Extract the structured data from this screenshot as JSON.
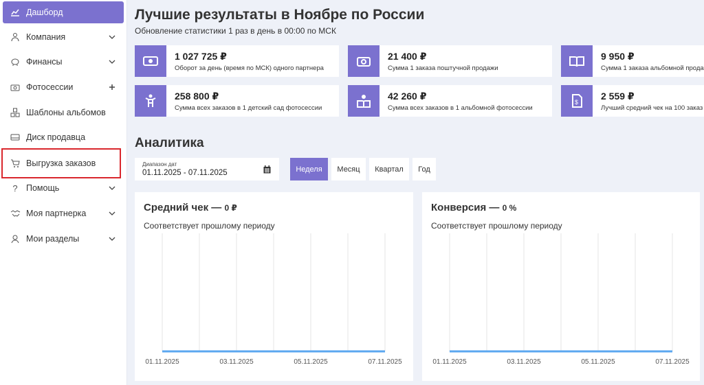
{
  "sidebar": {
    "items": [
      {
        "label": "Дашборд",
        "icon": "chart-icon",
        "chevron": ""
      },
      {
        "label": "Компания",
        "icon": "users-icon",
        "chevron": "v"
      },
      {
        "label": "Финансы",
        "icon": "piggy-bank-icon",
        "chevron": "v"
      },
      {
        "label": "Фотосессии",
        "icon": "camera-icon",
        "chevron": "+"
      },
      {
        "label": "Шаблоны альбомов",
        "icon": "templates-icon",
        "chevron": ""
      },
      {
        "label": "Диск продавца",
        "icon": "disk-icon",
        "chevron": ""
      },
      {
        "label": "Выгрузка заказов",
        "icon": "cart-icon",
        "chevron": ""
      },
      {
        "label": "Помощь",
        "icon": "question-icon",
        "chevron": "v"
      },
      {
        "label": "Моя партнерка",
        "icon": "handshake-icon",
        "chevron": "v"
      },
      {
        "label": "Мои разделы",
        "icon": "person-icon",
        "chevron": "v"
      }
    ]
  },
  "header": {
    "title": "Лучшие результаты в Ноябре по России",
    "subtitle": "Обновление статистики 1 раз в день в 00:00 по МСК"
  },
  "stats": [
    {
      "value": "1 027 725 ₽",
      "desc": "Оборот за день (время по МСК) одного партнера",
      "icon": "money-icon"
    },
    {
      "value": "21 400 ₽",
      "desc": "Сумма 1 заказа поштучной продажи",
      "icon": "camera-icon"
    },
    {
      "value": "9 950 ₽",
      "desc": "Сумма 1 заказа альбомной прода",
      "icon": "book-icon"
    },
    {
      "value": "258 800 ₽",
      "desc": "Сумма всех заказов в 1 детский сад фотосессии",
      "icon": "child-icon"
    },
    {
      "value": "42 260 ₽",
      "desc": "Сумма всех заказов в 1 альбомной фотосессии",
      "icon": "reader-icon"
    },
    {
      "value": "2 559 ₽",
      "desc": "Лучший средний чек на 100 заказ",
      "icon": "receipt-icon"
    }
  ],
  "analytics": {
    "title": "Аналитика",
    "date_label": "Диапазон дат",
    "date_range": "01.11.2025 - 07.11.2025",
    "periods": [
      "Неделя",
      "Месяц",
      "Квартал",
      "Год"
    ],
    "active_period": "Неделя"
  },
  "charts_text": [
    {
      "title": "Средний чек —",
      "value": "0 ₽",
      "subtitle": "Соответствует прошлому периоду"
    },
    {
      "title": "Конверсия —",
      "value": "0 %",
      "subtitle": "Соответствует прошлому периоду"
    }
  ],
  "chart_data": [
    {
      "type": "line",
      "title": "Средний чек — 0 ₽",
      "x": [
        "01.11.2025",
        "02.11.2025",
        "03.11.2025",
        "04.11.2025",
        "05.11.2025",
        "06.11.2025",
        "07.11.2025"
      ],
      "tick_labels": [
        "01.11.2025",
        "03.11.2025",
        "05.11.2025",
        "07.11.2025"
      ],
      "series": [
        {
          "values": [
            0,
            0,
            0,
            0,
            0,
            0,
            0
          ]
        }
      ],
      "grid": "vertical",
      "color": "#5ba7f0"
    },
    {
      "type": "line",
      "title": "Конверсия — 0 %",
      "x": [
        "01.11.2025",
        "02.11.2025",
        "03.11.2025",
        "04.11.2025",
        "05.11.2025",
        "06.11.2025",
        "07.11.2025"
      ],
      "tick_labels": [
        "01.11.2025",
        "03.11.2025",
        "05.11.2025",
        "07.11.2025"
      ],
      "series": [
        {
          "values": [
            0,
            0,
            0,
            0,
            0,
            0,
            0
          ]
        }
      ],
      "grid": "vertical",
      "color": "#5ba7f0"
    }
  ]
}
